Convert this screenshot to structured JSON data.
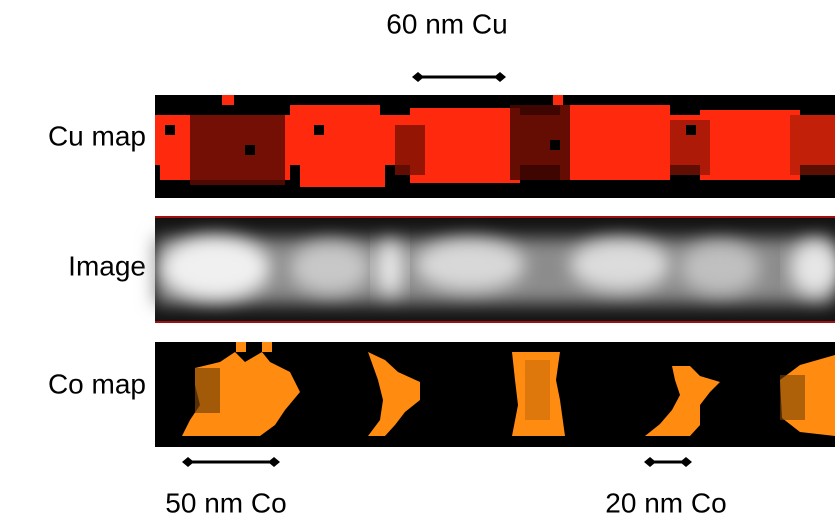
{
  "title": "60 nm Cu",
  "rows": [
    "Cu map",
    "Image",
    "Co map"
  ],
  "bottom_labels": [
    "50 nm Co",
    "20 nm Co"
  ]
}
